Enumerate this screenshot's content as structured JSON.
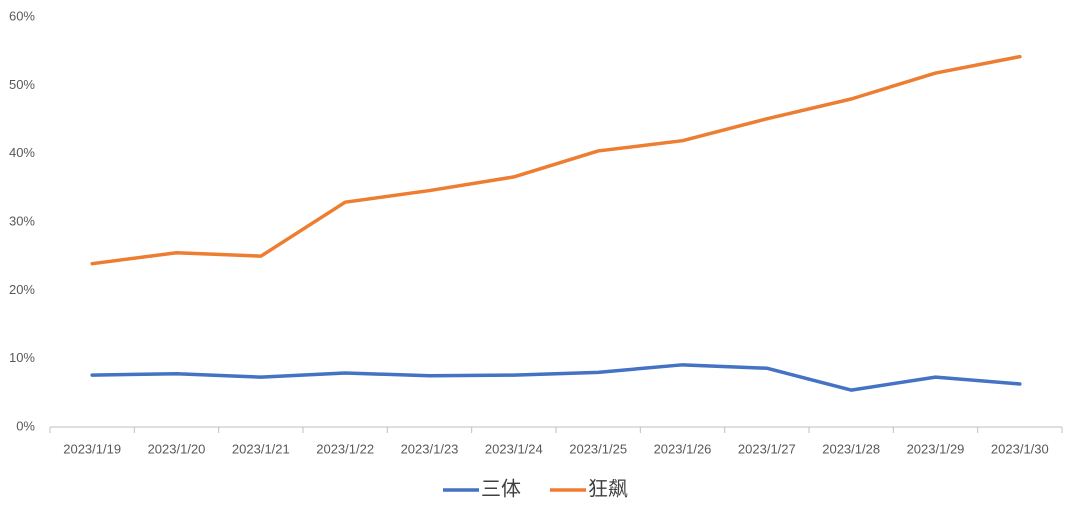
{
  "chart_data": {
    "type": "line",
    "categories": [
      "2023/1/19",
      "2023/1/20",
      "2023/1/21",
      "2023/1/22",
      "2023/1/23",
      "2023/1/24",
      "2023/1/25",
      "2023/1/26",
      "2023/1/27",
      "2023/1/28",
      "2023/1/29",
      "2023/1/30"
    ],
    "series": [
      {
        "name": "三体",
        "color": "#4472c4",
        "values": [
          7.6,
          7.8,
          7.3,
          7.9,
          7.5,
          7.6,
          8.0,
          9.1,
          8.6,
          5.4,
          7.3,
          6.3
        ]
      },
      {
        "name": "狂飙",
        "color": "#ed7d31",
        "values": [
          23.9,
          25.5,
          25.0,
          32.9,
          34.6,
          36.6,
          40.4,
          41.9,
          45.1,
          48.0,
          51.8,
          54.2
        ]
      }
    ],
    "ylim": [
      0,
      60
    ],
    "yticks": [
      {
        "value": 0,
        "label": "0%"
      },
      {
        "value": 10,
        "label": "10%"
      },
      {
        "value": 20,
        "label": "20%"
      },
      {
        "value": 30,
        "label": "30%"
      },
      {
        "value": 40,
        "label": "40%"
      },
      {
        "value": 50,
        "label": "50%"
      },
      {
        "value": 60,
        "label": "60%"
      }
    ],
    "grid": false,
    "legend": "bottom"
  }
}
